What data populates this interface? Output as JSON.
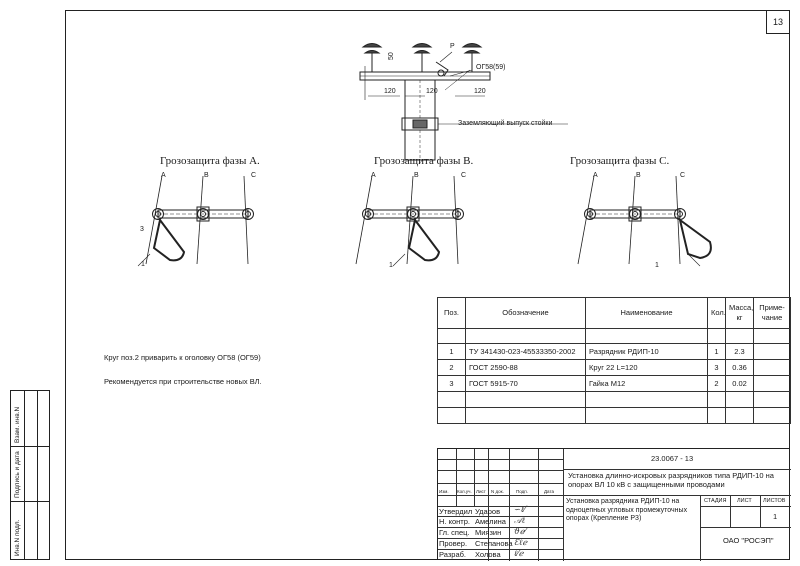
{
  "sheet_number": "13",
  "top_drawing": {
    "dims": {
      "a": "120",
      "b": "120",
      "c": "120",
      "v": "50"
    },
    "callouts": {
      "p": "P",
      "og": "ОГ58(59)",
      "ground": "Заземляющий выпуск стойки"
    }
  },
  "phases": [
    {
      "title": "Грозозащита фазы А.",
      "letters": [
        "A",
        "B",
        "C"
      ],
      "num1": "1",
      "num3": "3"
    },
    {
      "title": "Грозозащита фазы В.",
      "letters": [
        "A",
        "B",
        "C"
      ],
      "num1": "1"
    },
    {
      "title": "Грозозащита фазы С.",
      "letters": [
        "A",
        "B",
        "C"
      ],
      "num1": "1"
    }
  ],
  "notes": [
    "Круг поз.2 приварить к оголовку ОГ58 (ОГ59)",
    "Рекомендуется при строительстве новых ВЛ."
  ],
  "parts_table": {
    "headers": [
      "Поз.",
      "Обозначение",
      "Наименование",
      "Кол.",
      "Масса, кг",
      "Приме- чание"
    ],
    "rows": [
      [
        "1",
        "ТУ 341430-023-45533350-2002",
        "Разрядник РДИП-10",
        "1",
        "2.3",
        ""
      ],
      [
        "2",
        "ГОСТ 2590-88",
        "Круг 22 L=120",
        "3",
        "0.36",
        ""
      ],
      [
        "3",
        "ГОСТ 5915-70",
        "Гайка М12",
        "2",
        "0.02",
        ""
      ]
    ]
  },
  "side_strip": [
    "Взам. инв.N",
    "Подпись и дата",
    "Инв.N подл."
  ],
  "title_block": {
    "doc_code": "23.0067 - 13",
    "project_title": "Установка длинно-искровых разрядников типа РДИП-10 на опорах ВЛ 10 кВ с защищенными проводами",
    "col_heads": [
      "Изм.",
      "Кол.уч.",
      "Лист",
      "N док.",
      "Подп.",
      "Дата"
    ],
    "roles": [
      "Утвердил",
      "Н. контр.",
      "Гл. спец.",
      "Провер.",
      "Разраб."
    ],
    "names": [
      "Ударов",
      "Амелина",
      "Миязин",
      "Степанова",
      "Холова"
    ],
    "sheet_title": "Установка разрядника РДИП-10 на одноцепных угловых промежуточных опорах (Крепление Р3)",
    "stage_label": "СТАДИЯ",
    "sheet_label": "ЛИСТ",
    "sheets_label": "ЛИСТОВ",
    "sheets_value": "1",
    "org": "ОАО \"РОСЭП\""
  }
}
